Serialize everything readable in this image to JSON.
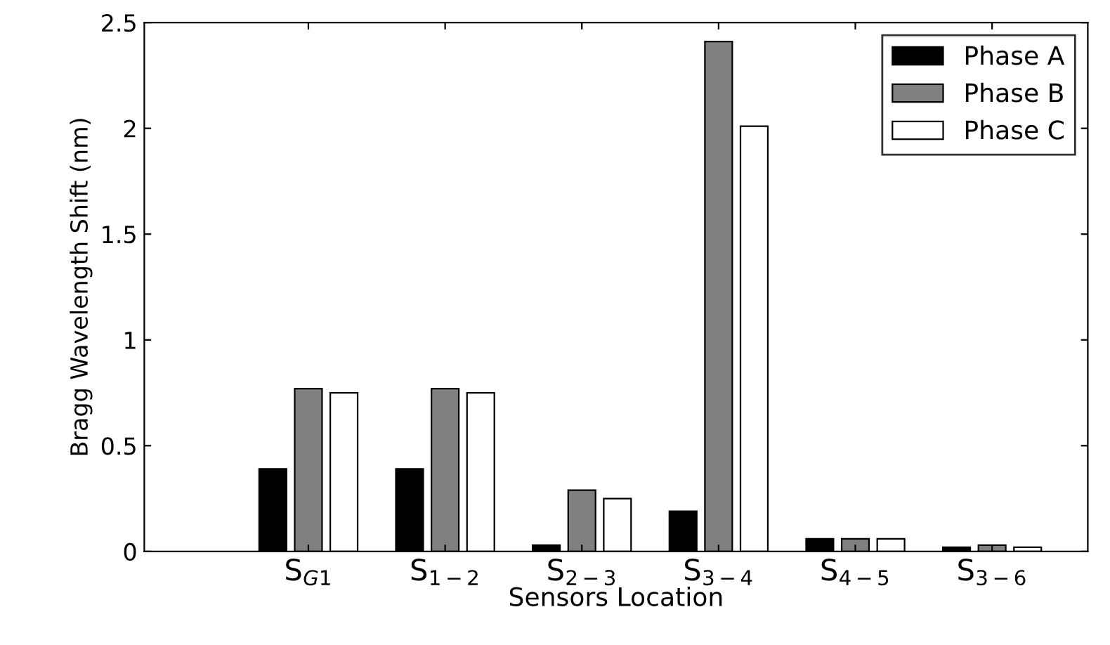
{
  "chart_data": {
    "type": "bar",
    "xlabel": "Sensors Location",
    "ylabel": "Bragg Wavelength Shift (nm)",
    "categories": [
      "S$_{G1}$",
      "S$_{1−2}$",
      "S$_{2−3}$",
      "S$_{3−4}$",
      "S$_{4−5}$",
      "S$_{3−6}$"
    ],
    "series": [
      {
        "name": "Phase A",
        "color": "#000000",
        "values": [
          0.39,
          0.39,
          0.03,
          0.19,
          0.06,
          0.02
        ]
      },
      {
        "name": "Phase B",
        "color": "#808080",
        "values": [
          0.77,
          0.77,
          0.29,
          2.41,
          0.06,
          0.03
        ]
      },
      {
        "name": "Phase C",
        "color": "#ffffff",
        "values": [
          0.75,
          0.75,
          0.25,
          2.01,
          0.06,
          0.02
        ]
      }
    ],
    "ylim": [
      0,
      2.5
    ],
    "yticks": [
      0,
      0.5,
      1,
      1.5,
      2,
      2.5
    ],
    "grid": false,
    "legend": "top right"
  }
}
